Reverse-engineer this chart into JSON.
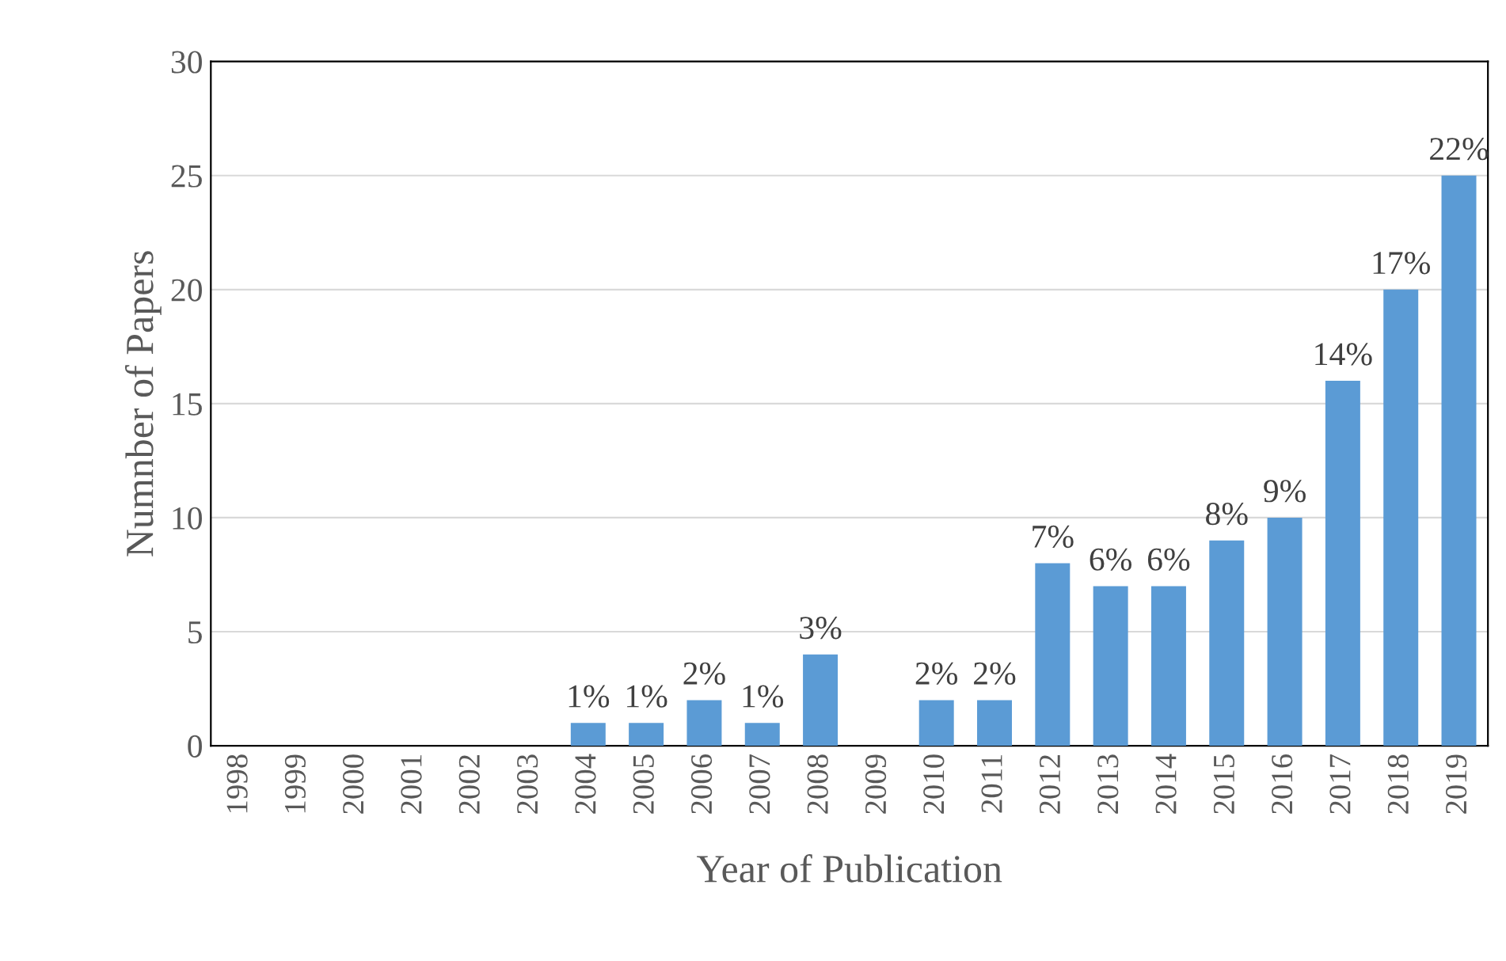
{
  "chart_data": {
    "type": "bar",
    "xlabel": "Year of Publication",
    "ylabel": "Numnber of Papers",
    "categories": [
      "1998",
      "1999",
      "2000",
      "2001",
      "2002",
      "2003",
      "2004",
      "2005",
      "2006",
      "2007",
      "2008",
      "2009",
      "2010",
      "2011",
      "2012",
      "2013",
      "2014",
      "2015",
      "2016",
      "2017",
      "2018",
      "2019"
    ],
    "values": [
      0,
      0,
      0,
      0,
      0,
      0,
      1,
      1,
      2,
      1,
      4,
      0,
      2,
      2,
      8,
      7,
      7,
      9,
      10,
      16,
      20,
      25
    ],
    "annotations": [
      {
        "text": "1%",
        "x": "2004",
        "y": 1
      },
      {
        "text": "1%",
        "x": "2005",
        "y": 1
      },
      {
        "text": "2%",
        "x": "2006",
        "y": 2
      },
      {
        "text": "1%",
        "x": "2007",
        "y": 1
      },
      {
        "text": "3%",
        "x": "2008",
        "y": 4
      },
      {
        "text": "2%",
        "x": "2010",
        "y": 2
      },
      {
        "text": "2%",
        "x": "2011",
        "y": 2
      },
      {
        "text": "7%",
        "x": "2012",
        "y": 8
      },
      {
        "text": "6%",
        "x": "2013",
        "y": 7
      },
      {
        "text": "6%",
        "x": "2014",
        "y": 7
      },
      {
        "text": "8%",
        "x": "2015",
        "y": 9
      },
      {
        "text": "9%",
        "x": "2016",
        "y": 10
      },
      {
        "text": "14%",
        "x": "2017",
        "y": 16
      },
      {
        "text": "17%",
        "x": "2018",
        "y": 20
      },
      {
        "text": "22%",
        "x": "2019",
        "y": 25
      }
    ],
    "color": "#5b9bd5",
    "ylim": [
      0,
      30
    ],
    "yticks": [
      0,
      5,
      10,
      15,
      20,
      25,
      30
    ],
    "grid": "y",
    "legend": false
  }
}
